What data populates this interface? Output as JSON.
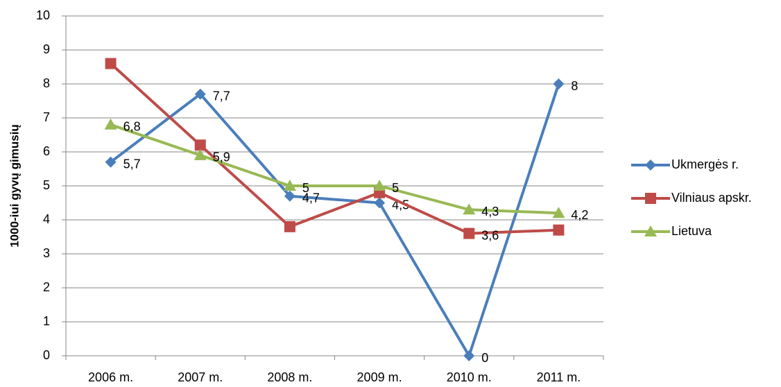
{
  "chart_data": {
    "type": "line",
    "y_label": "1000-iui gyvų gimusių",
    "categories": [
      "2006 m.",
      "2007 m.",
      "2008 m.",
      "2009 m.",
      "2010 m.",
      "2011 m."
    ],
    "series": [
      {
        "name": "Ukmergės r.",
        "color": "#4a7ebb",
        "marker": "diamond",
        "values": [
          5.7,
          7.7,
          4.7,
          4.5,
          0,
          8
        ],
        "value_labels": [
          "5,7",
          "7,7",
          "4,7",
          "4,5",
          "0",
          "8"
        ]
      },
      {
        "name": "Vilniaus apskr.",
        "color": "#be4b48",
        "marker": "square",
        "values": [
          8.6,
          6.2,
          3.8,
          4.8,
          3.6,
          3.7
        ],
        "value_labels": [
          null,
          null,
          null,
          null,
          "3,6",
          null
        ]
      },
      {
        "name": "Lietuva",
        "color": "#98b954",
        "marker": "triangle",
        "values": [
          6.8,
          5.9,
          5,
          5,
          4.3,
          4.2
        ],
        "value_labels": [
          "6,8",
          "5,9",
          "5",
          "5",
          "4,3",
          "4,2"
        ]
      }
    ],
    "ylim": [
      0,
      10
    ],
    "yticks": [
      0,
      1,
      2,
      3,
      4,
      5,
      6,
      7,
      8,
      9,
      10
    ],
    "grid": true,
    "legend": "right"
  }
}
